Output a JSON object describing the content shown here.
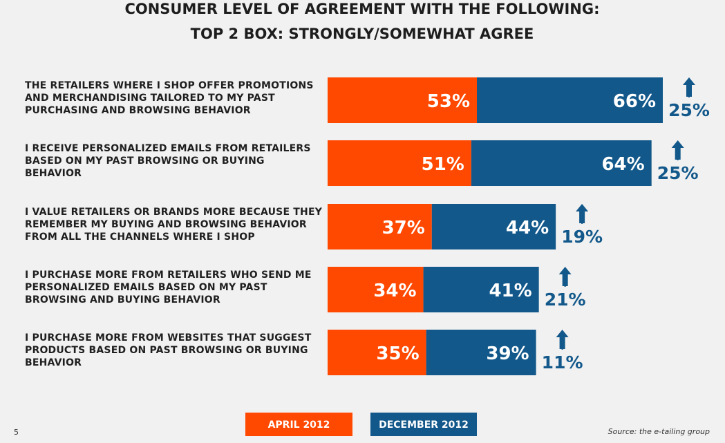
{
  "chart_data": {
    "type": "bar",
    "title": "CONSUMER LEVEL OF AGREEMENT WITH THE FOLLOWING:",
    "subtitle": "TOP 2 BOX: STRONGLY/SOMEWHAT AGREE",
    "categories": [
      "THE RETAILERS WHERE I SHOP OFFER PROMOTIONS AND MERCHANDISING TAILORED TO MY PAST PURCHASING AND BROWSING BEHAVIOR",
      "I RECEIVE PERSONALIZED EMAILS FROM RETAILERS BASED ON MY PAST BROWSING OR BUYING BEHAVIOR",
      "I VALUE RETAILERS OR BRANDS MORE BECAUSE THEY REMEMBER MY BUYING AND BROWSING BEHAVIOR FROM ALL THE CHANNELS WHERE I SHOP",
      "I PURCHASE MORE FROM RETAILERS WHO SEND ME PERSONALIZED EMAILS BASED ON MY PAST BROWSING AND BUYING BEHAVIOR",
      "I PURCHASE MORE FROM WEBSITES THAT SUGGEST PRODUCTS BASED ON PAST BROWSING OR BUYING BEHAVIOR"
    ],
    "series": [
      {
        "name": "APRIL 2012",
        "color": "#ff4800",
        "values": [
          53,
          51,
          37,
          34,
          35
        ],
        "value_labels": [
          "53%",
          "51%",
          "37%",
          "34%",
          "35%"
        ]
      },
      {
        "name": "DECEMBER 2012",
        "color": "#12588a",
        "values": [
          66,
          64,
          44,
          41,
          39
        ],
        "value_labels": [
          "66%",
          "64%",
          "44%",
          "41%",
          "39%"
        ]
      }
    ],
    "increase": {
      "color": "#12588a",
      "values": [
        25,
        25,
        19,
        21,
        11
      ],
      "value_labels": [
        "25%",
        "25%",
        "19%",
        "21%",
        "11%"
      ]
    },
    "page_number": "5",
    "source": "Source: the e-tailing group"
  }
}
